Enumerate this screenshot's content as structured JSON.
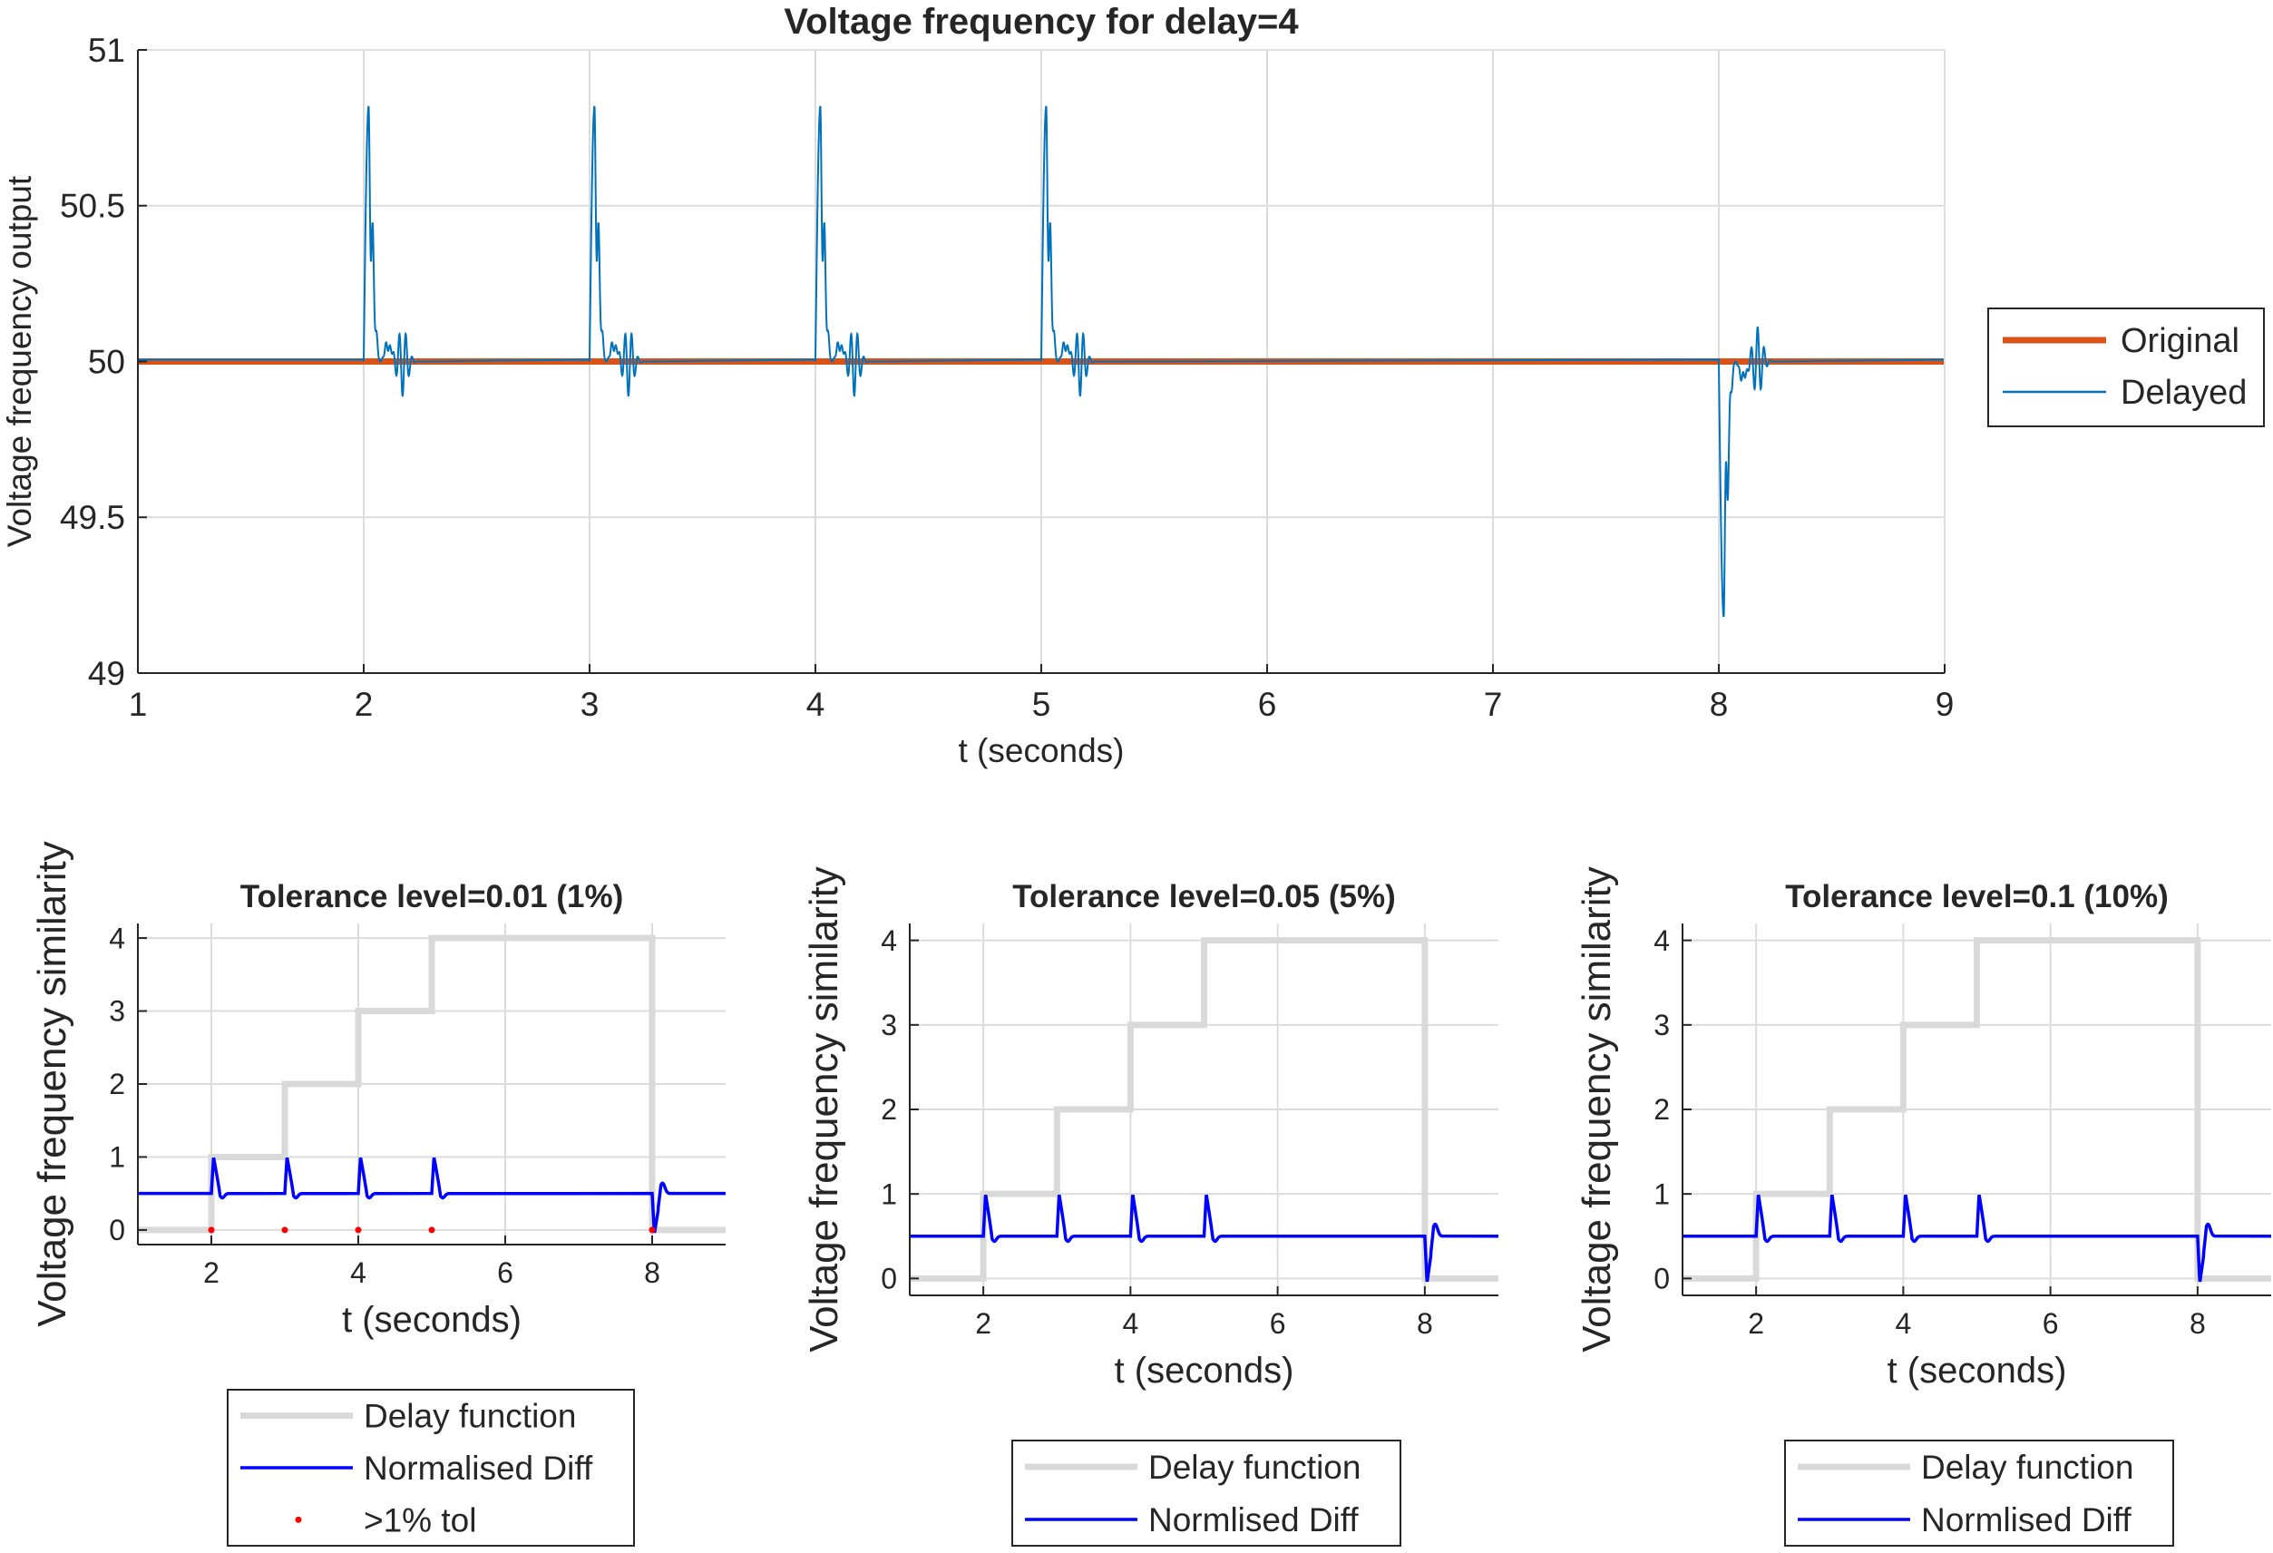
{
  "chart_data": [
    {
      "type": "line",
      "title": "Voltage frequency for delay=4",
      "xlabel": "t (seconds)",
      "ylabel": "Voltage frequency output",
      "xlim": [
        1,
        9
      ],
      "ylim": [
        49,
        51
      ],
      "xticks": [
        1,
        2,
        3,
        4,
        5,
        6,
        7,
        8,
        9
      ],
      "yticks": [
        49,
        49.5,
        50,
        50.5,
        51
      ],
      "grid": true,
      "legend_position": "right",
      "series": [
        {
          "name": "Original",
          "color": "#d95319",
          "constant": 50,
          "x": [
            1,
            9
          ],
          "y": [
            50,
            50
          ]
        },
        {
          "name": "Delayed",
          "color": "#0072bd",
          "baseline": 50,
          "events": [
            {
              "t": 2,
              "direction": "up",
              "peak": 50.82,
              "undershoot": 49.9
            },
            {
              "t": 3,
              "direction": "up",
              "peak": 50.82,
              "undershoot": 49.9
            },
            {
              "t": 4,
              "direction": "up",
              "peak": 50.82,
              "undershoot": 49.9
            },
            {
              "t": 5,
              "direction": "up",
              "peak": 50.82,
              "undershoot": 49.9
            },
            {
              "t": 8,
              "direction": "down",
              "peak": 49.18,
              "undershoot": 50.11
            }
          ]
        }
      ]
    },
    {
      "type": "line",
      "title": "Tolerance level=0.01 (1%)",
      "xlabel": "t (seconds)",
      "ylabel": "Voltage frequency similarity",
      "xlim": [
        1,
        9
      ],
      "ylim": [
        -0.2,
        4.2
      ],
      "xticks": [
        2,
        4,
        6,
        8
      ],
      "yticks": [
        0,
        1,
        2,
        3,
        4
      ],
      "grid": true,
      "legend_position": "below",
      "series": [
        {
          "name": "Delay function",
          "color": "#d9d9d9",
          "x": [
            1,
            2,
            2,
            3,
            3,
            4,
            4,
            5,
            5,
            8,
            8,
            9
          ],
          "y": [
            0,
            0,
            1,
            1,
            2,
            2,
            3,
            3,
            4,
            4,
            0,
            0
          ]
        },
        {
          "name": "Normalised Diff",
          "color": "#0000ff",
          "baseline": 0.5,
          "spikes_up": [
            2,
            3,
            4,
            5
          ],
          "spike_up_value": 1,
          "spikes_down": [
            8
          ],
          "spike_down_value": -0.05
        },
        {
          "name": ">1% tol",
          "color": "#ff0000",
          "marker": "dot",
          "x": [
            2,
            3,
            4,
            5,
            8
          ],
          "y": [
            0,
            0,
            0,
            0,
            0
          ]
        }
      ]
    },
    {
      "type": "line",
      "title": "Tolerance level=0.05 (5%)",
      "xlabel": "t (seconds)",
      "ylabel": "Voltage frequency similarity",
      "xlim": [
        1,
        9
      ],
      "ylim": [
        -0.2,
        4.2
      ],
      "xticks": [
        2,
        4,
        6,
        8
      ],
      "yticks": [
        0,
        1,
        2,
        3,
        4
      ],
      "grid": true,
      "legend_position": "below",
      "series": [
        {
          "name": "Delay function",
          "color": "#d9d9d9",
          "x": [
            1,
            2,
            2,
            3,
            3,
            4,
            4,
            5,
            5,
            8,
            8,
            9
          ],
          "y": [
            0,
            0,
            1,
            1,
            2,
            2,
            3,
            3,
            4,
            4,
            0,
            0
          ]
        },
        {
          "name": "Normlised Diff",
          "color": "#0000ff",
          "baseline": 0.5,
          "spikes_up": [
            2,
            3,
            4,
            5
          ],
          "spike_up_value": 1,
          "spikes_down": [
            8
          ],
          "spike_down_value": -0.05
        }
      ]
    },
    {
      "type": "line",
      "title": "Tolerance level=0.1 (10%)",
      "xlabel": "t (seconds)",
      "ylabel": "Voltage frequency similarity",
      "xlim": [
        1,
        9
      ],
      "ylim": [
        -0.2,
        4.2
      ],
      "xticks": [
        2,
        4,
        6,
        8
      ],
      "yticks": [
        0,
        1,
        2,
        3,
        4
      ],
      "grid": true,
      "legend_position": "below",
      "series": [
        {
          "name": "Delay function",
          "color": "#d9d9d9",
          "x": [
            1,
            2,
            2,
            3,
            3,
            4,
            4,
            5,
            5,
            8,
            8,
            9
          ],
          "y": [
            0,
            0,
            1,
            1,
            2,
            2,
            3,
            3,
            4,
            4,
            0,
            0
          ]
        },
        {
          "name": "Normlised Diff",
          "color": "#0000ff",
          "baseline": 0.5,
          "spikes_up": [
            2,
            3,
            4,
            5
          ],
          "spike_up_value": 1,
          "spikes_down": [
            8
          ],
          "spike_down_value": -0.05
        }
      ]
    }
  ]
}
